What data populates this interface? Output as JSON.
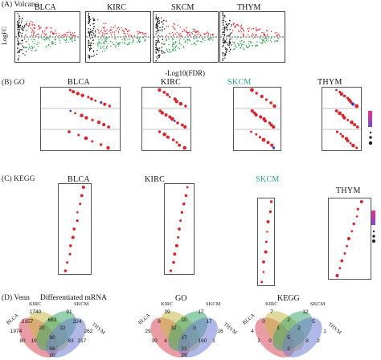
{
  "panel_a": {
    "label": "(A) Volcano",
    "ylabel": "LogFC",
    "xlabel": "-Log10(FDR)",
    "titles": [
      "BLCA",
      "KIRC",
      "SKCM",
      "THYM"
    ]
  },
  "panel_b": {
    "label": "(B) GO",
    "titles": [
      "BLCA",
      "KIRC",
      "SKCM",
      "THYM"
    ],
    "skcm_color": "#2aa38a"
  },
  "panel_c": {
    "label": "(C) KEGG",
    "titles": [
      "BLCA",
      "KIRC",
      "SKCM",
      "THYM"
    ],
    "skcm_color": "#2aa38a"
  },
  "panel_d": {
    "label": "(D) Venn",
    "subtitle": "Differentiated mRNA",
    "titles": [
      "GO",
      "KEGG"
    ],
    "set_labels": [
      "BLCA",
      "KIRC",
      "SKCM",
      "THYM"
    ],
    "venn1": [
      "1974",
      "1740",
      "683",
      "91",
      "262",
      "2157",
      "20",
      "90",
      "22",
      "224",
      "80",
      "10",
      "56",
      "83",
      "217",
      "20"
    ],
    "venn2": [
      "29",
      "39",
      "10",
      "17",
      "16",
      "8",
      "32",
      "17",
      "0",
      "17",
      "30",
      "4",
      "21",
      "160",
      "1",
      "29"
    ],
    "venn3": [
      "4",
      "7",
      "2",
      "12",
      "1",
      "0",
      "1",
      "5",
      "2",
      "5",
      "2",
      "0",
      "2",
      "8",
      "2"
    ]
  },
  "colors": {
    "red": "#d7262a",
    "green": "#2a9e4a",
    "blue": "#3546b8",
    "venn_blcа": "#d94a5a",
    "venn_kirc": "#c8b84a",
    "venn_skcm": "#3fa86a",
    "venn_thym": "#6f7fd0"
  }
}
